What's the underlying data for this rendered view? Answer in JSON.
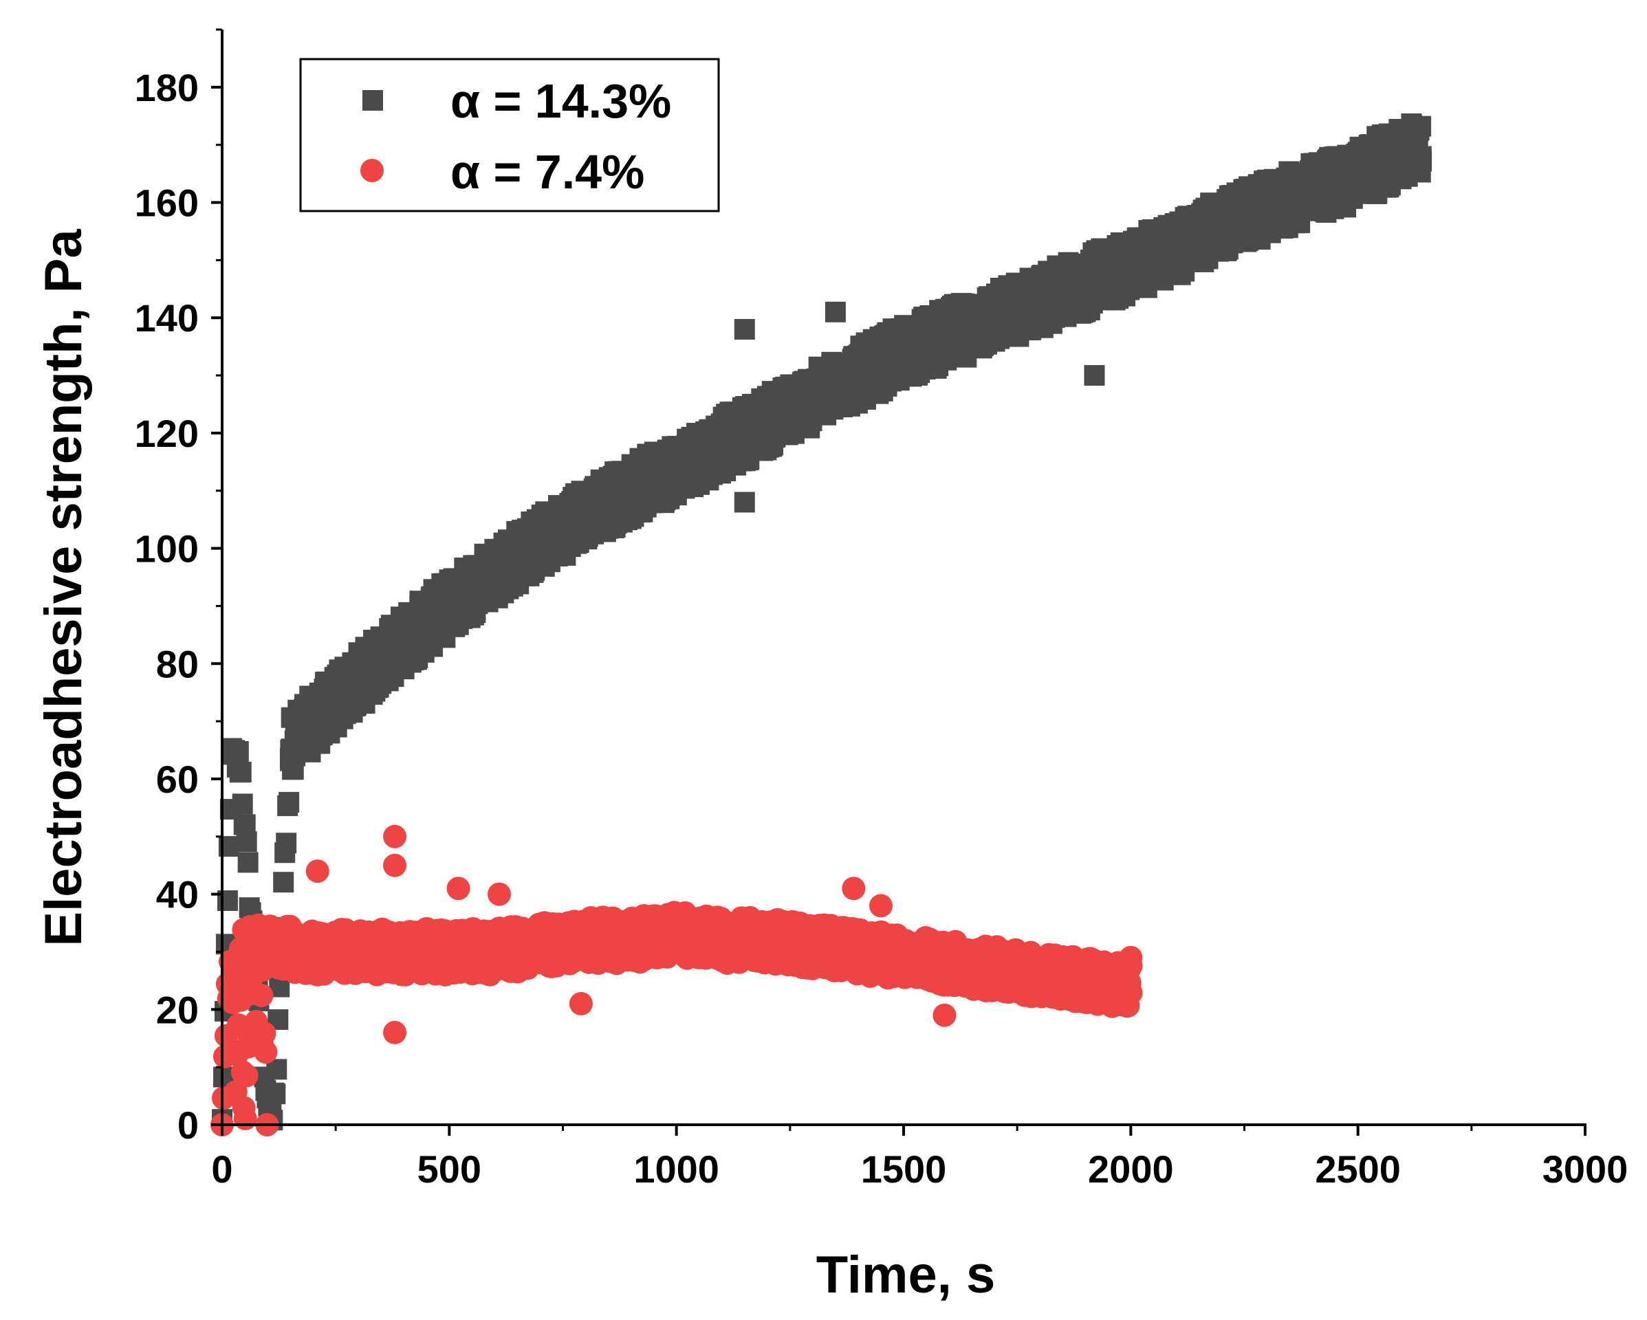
{
  "chart_data": {
    "type": "scatter",
    "title": "",
    "xlabel": "Time, s",
    "ylabel": "Electroadhesive strength, Pa",
    "xlim": [
      0,
      3000
    ],
    "ylim": [
      0,
      190
    ],
    "xticks": [
      0,
      500,
      1000,
      1500,
      2000,
      2500,
      3000
    ],
    "yticks": [
      0,
      20,
      40,
      60,
      80,
      100,
      120,
      140,
      160,
      180
    ],
    "xtick_labels": [
      "0",
      "500",
      "1000",
      "1500",
      "2000",
      "2500",
      "3000"
    ],
    "ytick_labels": [
      "0",
      "20",
      "40",
      "60",
      "80",
      "100",
      "120",
      "140",
      "160",
      "180"
    ],
    "grid": false,
    "legend_position": "top-left",
    "series": [
      {
        "name": "α = 14.3%",
        "marker": "square",
        "color": "#4a4a4a",
        "trend": {
          "x": [
            150,
            200,
            300,
            400,
            500,
            600,
            700,
            800,
            900,
            1000,
            1100,
            1200,
            1300,
            1400,
            1500,
            1600,
            1700,
            1800,
            1900,
            2000,
            2100,
            2200,
            2300,
            2400,
            2500,
            2640
          ],
          "y": [
            66,
            70,
            77,
            84,
            90,
            96,
            101,
            106,
            110,
            114,
            118,
            122,
            126,
            130,
            134,
            137,
            140,
            143,
            146,
            149,
            152,
            156,
            159,
            162,
            165,
            170
          ]
        },
        "spread": 5,
        "startup": {
          "x": [
            0,
            20,
            40,
            60,
            80,
            100,
            110,
            120,
            130,
            140,
            150
          ],
          "y": [
            0,
            63,
            63,
            40,
            20,
            5,
            0,
            10,
            30,
            50,
            62
          ]
        },
        "outliers": {
          "x": [
            1150,
            1350,
            1920,
            1150,
            2600
          ],
          "y": [
            138,
            141,
            130,
            108,
            170
          ]
        }
      },
      {
        "name": "α = 7.4%",
        "marker": "circle",
        "color": "#ef4444",
        "trend": {
          "x": [
            40,
            100,
            200,
            300,
            400,
            500,
            600,
            700,
            800,
            900,
            1000,
            1100,
            1200,
            1300,
            1400,
            1500,
            1600,
            1700,
            1800,
            1900,
            2000
          ],
          "y": [
            30,
            31,
            30,
            30,
            30,
            30,
            30,
            31,
            32,
            32,
            33,
            32,
            32,
            31,
            30,
            29,
            28,
            27,
            26,
            25,
            24
          ]
        },
        "spread": 4,
        "startup": {
          "x": [
            0,
            10,
            20,
            30,
            40,
            50,
            60,
            70,
            80,
            90,
            100
          ],
          "y": [
            0,
            20,
            28,
            5,
            24,
            0,
            18,
            30,
            10,
            25,
            0
          ]
        },
        "outliers": {
          "x": [
            380,
            380,
            380,
            210,
            520,
            610,
            790,
            1390,
            1450,
            1590,
            2000
          ],
          "y": [
            50,
            45,
            16,
            44,
            41,
            40,
            21,
            41,
            38,
            19,
            29
          ]
        }
      }
    ]
  },
  "legend": {
    "entries": [
      "α = 14.3%",
      "α = 7.4%"
    ]
  }
}
